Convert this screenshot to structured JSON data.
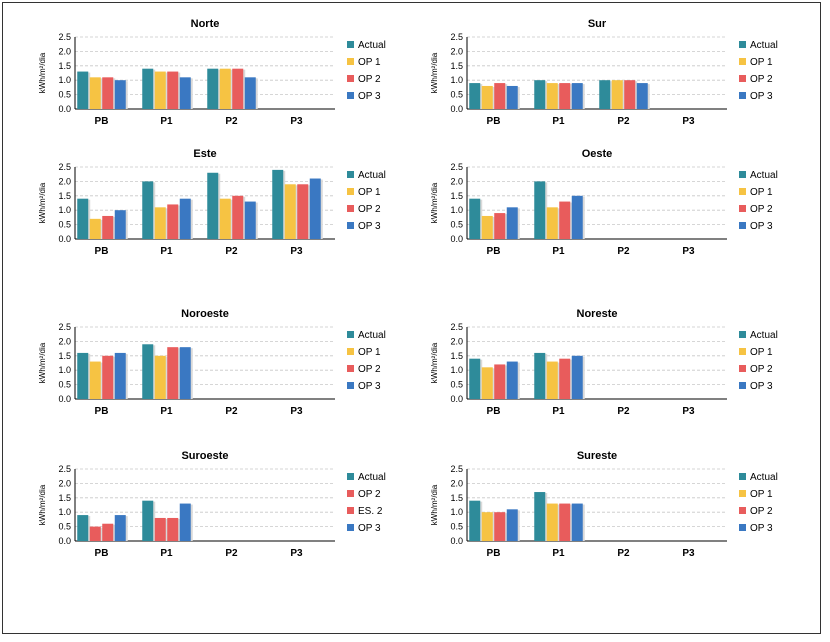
{
  "colors": {
    "Actual": "#2e8b9a",
    "OP 1": "#f6c343",
    "OP 2": "#e85c5c",
    "ES. 2": "#e85c5c",
    "OP 3": "#3a78c2",
    "grid": "#c8c8c8",
    "axis": "#000000"
  },
  "chart_data": [
    {
      "type": "bar",
      "title": "Norte",
      "ylabel": "kWh/m²/dia",
      "categories": [
        "PB",
        "P1",
        "P2",
        "P3"
      ],
      "ylim": [
        0,
        2.5
      ],
      "yticks": [
        "0.0",
        "0.5",
        "1.0",
        "1.5",
        "2.0",
        "2.5"
      ],
      "grid": true,
      "legend": "right",
      "series": [
        {
          "name": "Actual",
          "values": [
            1.3,
            1.4,
            1.4,
            null
          ]
        },
        {
          "name": "OP 1",
          "values": [
            1.1,
            1.3,
            1.4,
            null
          ]
        },
        {
          "name": "OP 2",
          "values": [
            1.1,
            1.3,
            1.4,
            null
          ]
        },
        {
          "name": "OP 3",
          "values": [
            1.0,
            1.1,
            1.1,
            null
          ]
        }
      ]
    },
    {
      "type": "bar",
      "title": "Sur",
      "ylabel": "kWh/m²/dia",
      "categories": [
        "PB",
        "P1",
        "P2",
        "P3"
      ],
      "ylim": [
        0,
        2.5
      ],
      "yticks": [
        "0.0",
        "0.5",
        "1.0",
        "1.5",
        "2.0",
        "2.5"
      ],
      "grid": true,
      "legend": "right",
      "series": [
        {
          "name": "Actual",
          "values": [
            0.9,
            1.0,
            1.0,
            null
          ]
        },
        {
          "name": "OP 1",
          "values": [
            0.8,
            0.9,
            1.0,
            null
          ]
        },
        {
          "name": "OP 2",
          "values": [
            0.9,
            0.9,
            1.0,
            null
          ]
        },
        {
          "name": "OP 3",
          "values": [
            0.8,
            0.9,
            0.9,
            null
          ]
        }
      ]
    },
    {
      "type": "bar",
      "title": "Este",
      "ylabel": "kWh/m²/dia",
      "categories": [
        "PB",
        "P1",
        "P2",
        "P3"
      ],
      "ylim": [
        0,
        2.5
      ],
      "yticks": [
        "0.0",
        "0.5",
        "1.0",
        "1.5",
        "2.0",
        "2.5"
      ],
      "grid": true,
      "legend": "right",
      "series": [
        {
          "name": "Actual",
          "values": [
            1.4,
            2.0,
            2.3,
            2.4
          ]
        },
        {
          "name": "OP 1",
          "values": [
            0.7,
            1.1,
            1.4,
            1.9
          ]
        },
        {
          "name": "OP 2",
          "values": [
            0.8,
            1.2,
            1.5,
            1.9
          ]
        },
        {
          "name": "OP 3",
          "values": [
            1.0,
            1.4,
            1.3,
            2.1
          ]
        }
      ]
    },
    {
      "type": "bar",
      "title": "Oeste",
      "ylabel": "kWh/m²/dia",
      "categories": [
        "PB",
        "P1",
        "P2",
        "P3"
      ],
      "ylim": [
        0,
        2.5
      ],
      "yticks": [
        "0.0",
        "0.5",
        "1.0",
        "1.5",
        "2.0",
        "2.5"
      ],
      "grid": true,
      "legend": "right",
      "series": [
        {
          "name": "Actual",
          "values": [
            1.4,
            2.0,
            null,
            null
          ]
        },
        {
          "name": "OP 1",
          "values": [
            0.8,
            1.1,
            null,
            null
          ]
        },
        {
          "name": "OP 2",
          "values": [
            0.9,
            1.3,
            null,
            null
          ]
        },
        {
          "name": "OP 3",
          "values": [
            1.1,
            1.5,
            null,
            null
          ]
        }
      ]
    },
    {
      "type": "bar",
      "title": "Noroeste",
      "ylabel": "kWh/m²/dia",
      "categories": [
        "PB",
        "P1",
        "P2",
        "P3"
      ],
      "ylim": [
        0,
        2.5
      ],
      "yticks": [
        "0.0",
        "0.5",
        "1.0",
        "1.5",
        "2.0",
        "2.5"
      ],
      "grid": true,
      "legend": "right",
      "series": [
        {
          "name": "Actual",
          "values": [
            1.6,
            1.9,
            null,
            null
          ]
        },
        {
          "name": "OP 1",
          "values": [
            1.3,
            1.5,
            null,
            null
          ]
        },
        {
          "name": "OP 2",
          "values": [
            1.5,
            1.8,
            null,
            null
          ]
        },
        {
          "name": "OP 3",
          "values": [
            1.6,
            1.8,
            null,
            null
          ]
        }
      ]
    },
    {
      "type": "bar",
      "title": "Noreste",
      "ylabel": "kWh/m²/dia",
      "categories": [
        "PB",
        "P1",
        "P2",
        "P3"
      ],
      "ylim": [
        0,
        2.5
      ],
      "yticks": [
        "0.0",
        "0.5",
        "1.0",
        "1.5",
        "2.0",
        "2.5"
      ],
      "grid": true,
      "legend": "right",
      "series": [
        {
          "name": "Actual",
          "values": [
            1.4,
            1.6,
            null,
            null
          ]
        },
        {
          "name": "OP 1",
          "values": [
            1.1,
            1.3,
            null,
            null
          ]
        },
        {
          "name": "OP 2",
          "values": [
            1.2,
            1.4,
            null,
            null
          ]
        },
        {
          "name": "OP 3",
          "values": [
            1.3,
            1.5,
            null,
            null
          ]
        }
      ]
    },
    {
      "type": "bar",
      "title": "Suroeste",
      "ylabel": "kWh/m²/dia",
      "categories": [
        "PB",
        "P1",
        "P2",
        "P3"
      ],
      "ylim": [
        0,
        2.5
      ],
      "yticks": [
        "0.0",
        "0.5",
        "1.0",
        "1.5",
        "2.0",
        "2.5"
      ],
      "grid": true,
      "legend": "right",
      "series": [
        {
          "name": "Actual",
          "values": [
            0.9,
            1.4,
            null,
            null
          ]
        },
        {
          "name": "OP 2",
          "values": [
            0.5,
            0.8,
            null,
            null
          ]
        },
        {
          "name": "ES. 2",
          "values": [
            0.6,
            0.8,
            null,
            null
          ]
        },
        {
          "name": "OP 3",
          "values": [
            0.9,
            1.3,
            null,
            null
          ]
        }
      ]
    },
    {
      "type": "bar",
      "title": "Sureste",
      "ylabel": "kWh/m²/dia",
      "categories": [
        "PB",
        "P1",
        "P2",
        "P3"
      ],
      "ylim": [
        0,
        2.5
      ],
      "yticks": [
        "0.0",
        "0.5",
        "1.0",
        "1.5",
        "2.0",
        "2.5"
      ],
      "grid": true,
      "legend": "right",
      "series": [
        {
          "name": "Actual",
          "values": [
            1.4,
            1.7,
            null,
            null
          ]
        },
        {
          "name": "OP 1",
          "values": [
            1.0,
            1.3,
            null,
            null
          ]
        },
        {
          "name": "OP 2",
          "values": [
            1.0,
            1.3,
            null,
            null
          ]
        },
        {
          "name": "OP 3",
          "values": [
            1.1,
            1.3,
            null,
            null
          ]
        }
      ]
    }
  ]
}
